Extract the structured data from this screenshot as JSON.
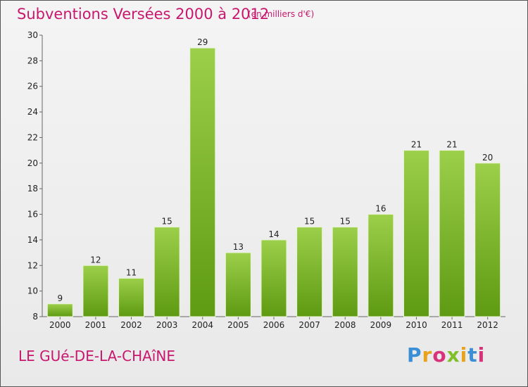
{
  "title": "Subventions Versées 2000 à 2012",
  "subtitle": "(en milliers d'€)",
  "town": "LE GUé-DE-LA-CHAîNE",
  "logo": [
    "P",
    "r",
    "o",
    "x",
    "i",
    "t",
    "i"
  ],
  "colors": {
    "title": "#c8186e",
    "bar_top": "#9ccf4a",
    "bar_bottom": "#5e9a12",
    "bar_edge": "#e7f3d3"
  },
  "chart_data": {
    "type": "bar",
    "title": "Subventions Versées 2000 à 2012",
    "categories": [
      "2000",
      "2001",
      "2002",
      "2003",
      "2004",
      "2005",
      "2006",
      "2007",
      "2008",
      "2009",
      "2010",
      "2011",
      "2012"
    ],
    "values": [
      9,
      12,
      11,
      15,
      29,
      13,
      14,
      15,
      15,
      16,
      21,
      21,
      20
    ],
    "ylim": [
      8,
      30
    ],
    "yticks": [
      8,
      10,
      12,
      14,
      16,
      18,
      20,
      22,
      24,
      26,
      28,
      30
    ],
    "grid": false,
    "legend": "none"
  }
}
